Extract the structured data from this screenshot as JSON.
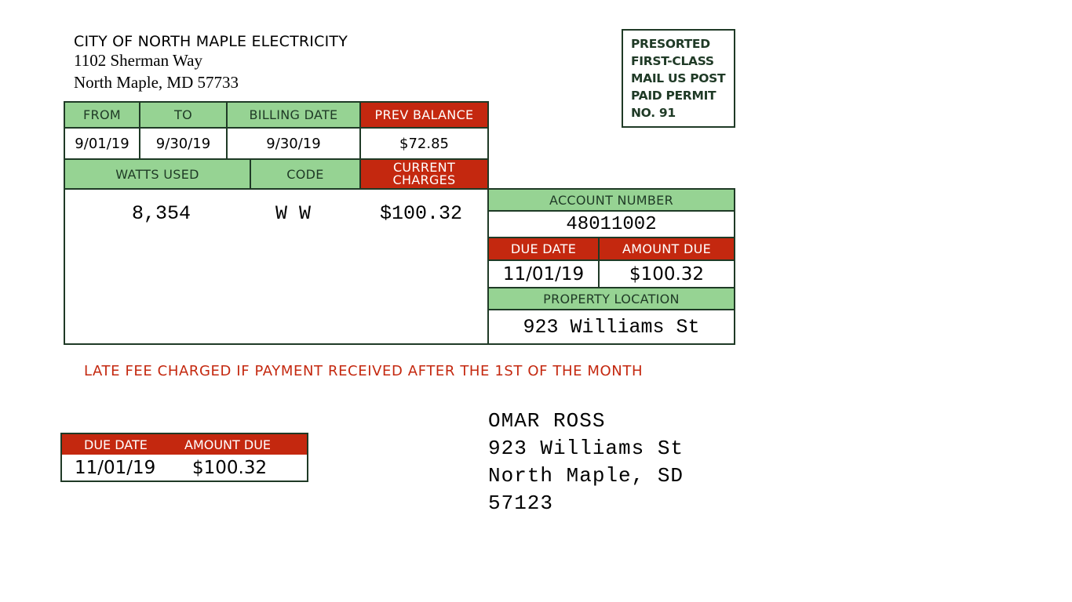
{
  "sender": {
    "name": "CITY OF NORTH MAPLE ELECTRICITY",
    "street": "1102 Sherman Way",
    "city_state_zip": "North Maple, MD 57733"
  },
  "permit": {
    "lines": [
      "PRESORTED",
      "FIRST-CLASS",
      "MAIL US POST",
      "PAID PERMIT",
      "NO. 91"
    ]
  },
  "billing": {
    "from_label": "FROM",
    "to_label": "TO",
    "billing_date_label": "BILLING DATE",
    "prev_balance_label": "PREV BALANCE",
    "from": "9/01/19",
    "to": "9/30/19",
    "billing_date": "9/30/19",
    "prev_balance": "$72.85",
    "watts_used_label": "WATTS USED",
    "code_label": "CODE",
    "current_charges_label_1": "CURRENT",
    "current_charges_label_2": "CHARGES",
    "watts_used": "8,354",
    "code": "W W",
    "current_charges": "$100.32"
  },
  "account": {
    "account_number_label": "ACCOUNT NUMBER",
    "account_number": "48011002",
    "due_date_label": "DUE DATE",
    "amount_due_label": "AMOUNT DUE",
    "due_date": "11/01/19",
    "amount_due": "$100.32",
    "property_location_label": "PROPERTY LOCATION",
    "property_location": "923 Williams St"
  },
  "notice": "LATE FEE CHARGED IF PAYMENT RECEIVED AFTER THE 1ST  OF THE MONTH",
  "stub": {
    "due_date_label": "DUE DATE",
    "amount_due_label": "AMOUNT DUE",
    "due_date": "11/01/19",
    "amount_due": "$100.32"
  },
  "recipient": {
    "name": "OMAR ROSS",
    "street": "923 Williams St",
    "city_state": "North Maple, SD",
    "zip": "57123"
  },
  "colors": {
    "green_header": "#96d393",
    "red_header": "#c4280f",
    "border": "#1f3a26"
  }
}
